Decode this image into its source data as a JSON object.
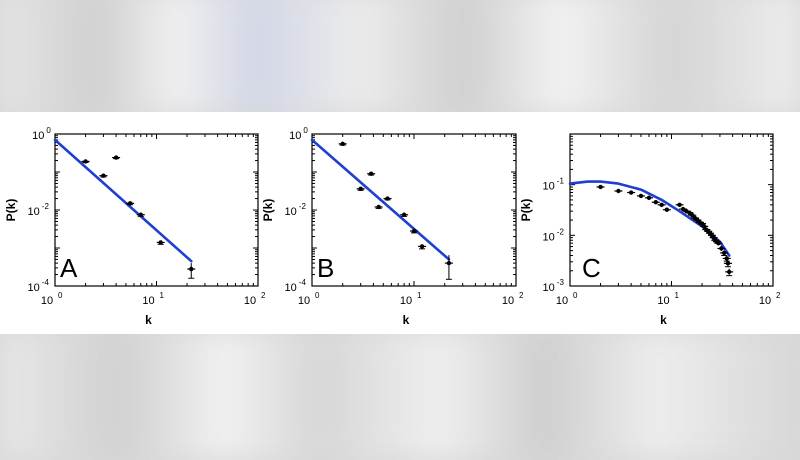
{
  "chart_data": [
    {
      "type": "scatter",
      "panel_label": "A",
      "xlabel": "k",
      "ylabel": "P(k)",
      "x_scale": "log",
      "y_scale": "log",
      "xlim": [
        1,
        100
      ],
      "ylim": [
        0.0001,
        1
      ],
      "x_ticks": [
        {
          "base": "10",
          "exp": "0"
        },
        {
          "base": "10",
          "exp": "1"
        },
        {
          "base": "10",
          "exp": "2"
        }
      ],
      "y_ticks": [
        {
          "base": "10",
          "exp": "0"
        },
        {
          "base": "10",
          "exp": "-2"
        },
        {
          "base": "10",
          "exp": "-4"
        }
      ],
      "points": [
        {
          "x": 2,
          "y": 0.19,
          "err": 0.012
        },
        {
          "x": 3,
          "y": 0.08,
          "err": 0.006
        },
        {
          "x": 4,
          "y": 0.24,
          "err": 0.015
        },
        {
          "x": 5.5,
          "y": 0.015,
          "err": 0.0012
        },
        {
          "x": 7,
          "y": 0.0075,
          "err": 0.0007
        },
        {
          "x": 11,
          "y": 0.0014,
          "err": 0.00015
        },
        {
          "x": 22,
          "y": 0.00028,
          "err": 0.00012
        }
      ],
      "fit_line": {
        "x": [
          1,
          22
        ],
        "y": [
          0.7,
          0.00045
        ]
      },
      "fit_color": "#1f3fd0"
    },
    {
      "type": "scatter",
      "panel_label": "B",
      "xlabel": "k",
      "ylabel": "P(k)",
      "x_scale": "log",
      "y_scale": "log",
      "xlim": [
        1,
        100
      ],
      "ylim": [
        0.0001,
        1
      ],
      "x_ticks": [
        {
          "base": "10",
          "exp": "0"
        },
        {
          "base": "10",
          "exp": "1"
        },
        {
          "base": "10",
          "exp": "2"
        }
      ],
      "y_ticks": [
        {
          "base": "10",
          "exp": "0"
        },
        {
          "base": "10",
          "exp": "-2"
        },
        {
          "base": "10",
          "exp": "-4"
        }
      ],
      "points": [
        {
          "x": 2,
          "y": 0.55,
          "err": 0.04
        },
        {
          "x": 3,
          "y": 0.036,
          "err": 0.003
        },
        {
          "x": 3.8,
          "y": 0.09,
          "err": 0.007
        },
        {
          "x": 4.5,
          "y": 0.012,
          "err": 0.001
        },
        {
          "x": 5.5,
          "y": 0.02,
          "err": 0.0015
        },
        {
          "x": 8,
          "y": 0.0075,
          "err": 0.0007
        },
        {
          "x": 10,
          "y": 0.0028,
          "err": 0.0003
        },
        {
          "x": 12,
          "y": 0.0011,
          "err": 0.00015
        },
        {
          "x": 22,
          "y": 0.0004,
          "err": 0.00025
        }
      ],
      "fit_line": {
        "x": [
          1,
          22
        ],
        "y": [
          0.7,
          0.0005
        ]
      },
      "fit_color": "#1f3fd0"
    },
    {
      "type": "scatter",
      "panel_label": "C",
      "xlabel": "k",
      "ylabel": "P(k)",
      "x_scale": "log",
      "y_scale": "log",
      "xlim": [
        1,
        100
      ],
      "ylim": [
        0.001,
        1
      ],
      "x_ticks": [
        {
          "base": "10",
          "exp": "0"
        },
        {
          "base": "10",
          "exp": "1"
        },
        {
          "base": "10",
          "exp": "2"
        }
      ],
      "y_ticks": [
        {
          "base": "10",
          "exp": "-1"
        },
        {
          "base": "10",
          "exp": "-2"
        },
        {
          "base": "10",
          "exp": "-3"
        }
      ],
      "points": [
        {
          "x": 2,
          "y": 0.09,
          "err": 0.007
        },
        {
          "x": 3,
          "y": 0.075,
          "err": 0.006
        },
        {
          "x": 4,
          "y": 0.07,
          "err": 0.006
        },
        {
          "x": 5,
          "y": 0.06,
          "err": 0.005
        },
        {
          "x": 6,
          "y": 0.055,
          "err": 0.005
        },
        {
          "x": 7,
          "y": 0.045,
          "err": 0.004
        },
        {
          "x": 8,
          "y": 0.04,
          "err": 0.004
        },
        {
          "x": 9,
          "y": 0.032,
          "err": 0.003
        },
        {
          "x": 12,
          "y": 0.04,
          "err": 0.003
        },
        {
          "x": 13,
          "y": 0.033,
          "err": 0.003
        },
        {
          "x": 14,
          "y": 0.03,
          "err": 0.003
        },
        {
          "x": 15,
          "y": 0.028,
          "err": 0.002
        },
        {
          "x": 16,
          "y": 0.025,
          "err": 0.002
        },
        {
          "x": 17,
          "y": 0.022,
          "err": 0.002
        },
        {
          "x": 18,
          "y": 0.02,
          "err": 0.002
        },
        {
          "x": 19,
          "y": 0.018,
          "err": 0.002
        },
        {
          "x": 20,
          "y": 0.017,
          "err": 0.0015
        },
        {
          "x": 21,
          "y": 0.015,
          "err": 0.0015
        },
        {
          "x": 22,
          "y": 0.013,
          "err": 0.0012
        },
        {
          "x": 23,
          "y": 0.012,
          "err": 0.0012
        },
        {
          "x": 24,
          "y": 0.011,
          "err": 0.001
        },
        {
          "x": 25,
          "y": 0.01,
          "err": 0.001
        },
        {
          "x": 26,
          "y": 0.009,
          "err": 0.0009
        },
        {
          "x": 27,
          "y": 0.008,
          "err": 0.0008
        },
        {
          "x": 28,
          "y": 0.0075,
          "err": 0.0007
        },
        {
          "x": 29,
          "y": 0.007,
          "err": 0.0007
        },
        {
          "x": 31,
          "y": 0.0055,
          "err": 0.0006
        },
        {
          "x": 33,
          "y": 0.0045,
          "err": 0.0005
        },
        {
          "x": 35,
          "y": 0.0035,
          "err": 0.0004
        },
        {
          "x": 36,
          "y": 0.0028,
          "err": 0.0004
        },
        {
          "x": 37,
          "y": 0.0019,
          "err": 0.0003
        }
      ],
      "fit_line": {
        "x": [
          1,
          1.5,
          2,
          3,
          5,
          8,
          12,
          20,
          30,
          37
        ],
        "y": [
          0.105,
          0.115,
          0.115,
          0.105,
          0.08,
          0.05,
          0.03,
          0.015,
          0.0075,
          0.004
        ]
      },
      "fit_color": "#1f3fd0"
    }
  ]
}
